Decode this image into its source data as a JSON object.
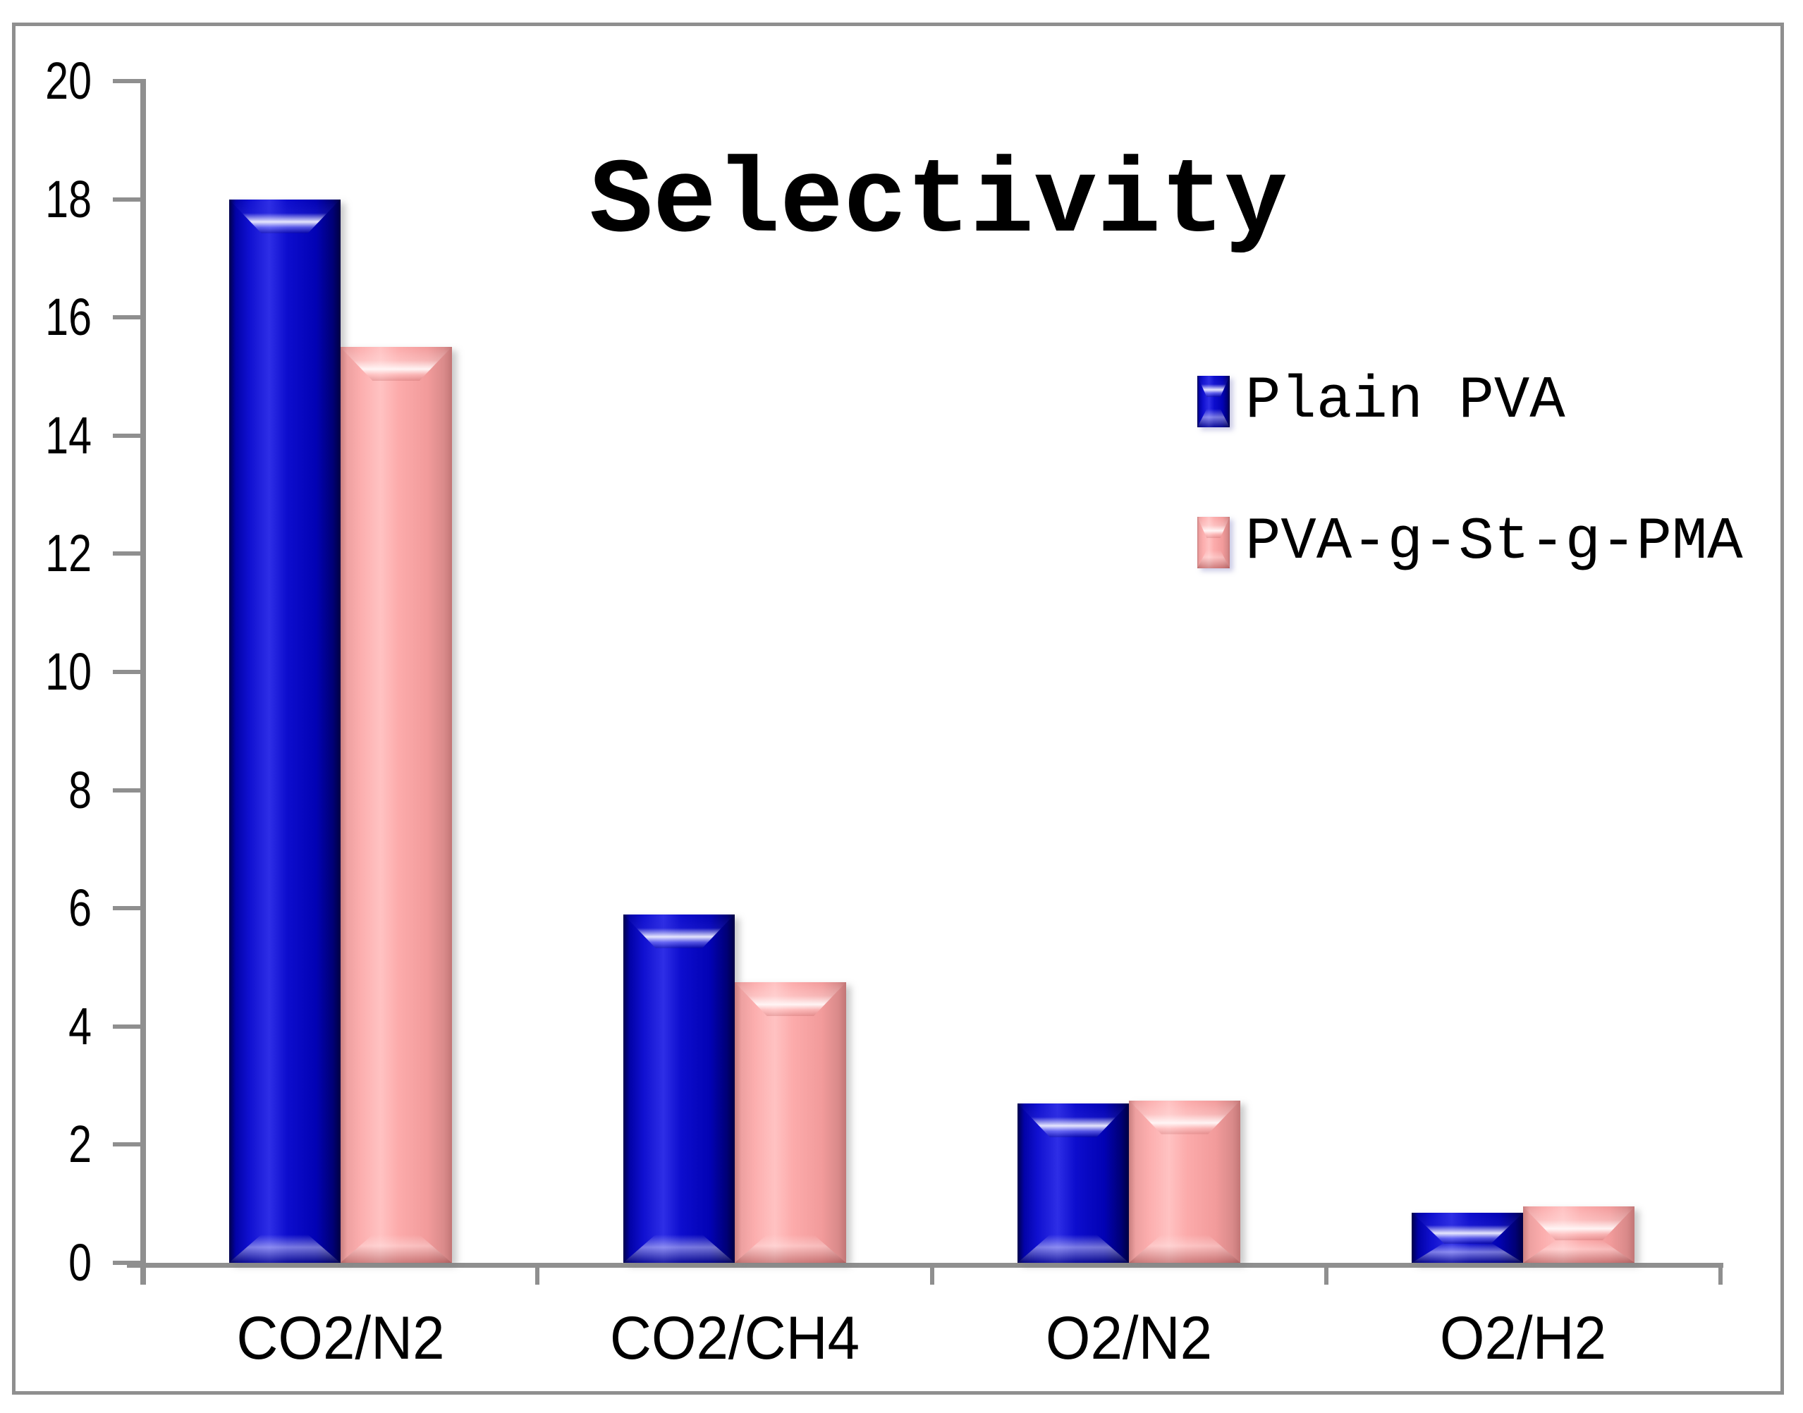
{
  "title": "Selectivity",
  "chart_data": {
    "type": "bar",
    "title": "Selectivity",
    "categories": [
      "CO2/N2",
      "CO2/CH4",
      "O2/N2",
      "O2/H2"
    ],
    "series": [
      {
        "name": "Plain PVA",
        "color": "#1111cc",
        "values": [
          18.0,
          5.9,
          2.7,
          0.85
        ]
      },
      {
        "name": "PVA-g-St-g-PMA",
        "color": "#fbaaaa",
        "values": [
          15.5,
          4.75,
          2.75,
          0.95
        ]
      }
    ],
    "xlabel": "",
    "ylabel": "",
    "ylim": [
      0,
      20
    ],
    "yticks": [
      0,
      2,
      4,
      6,
      8,
      10,
      12,
      14,
      16,
      18,
      20
    ],
    "grid": false,
    "legend_position": "upper-right",
    "axis_color": "#8f8f8f",
    "background": "#ffffff"
  }
}
